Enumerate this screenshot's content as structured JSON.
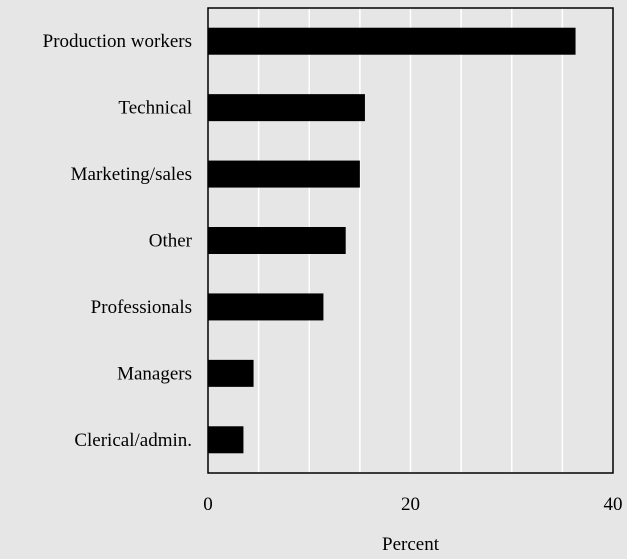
{
  "chart_data": {
    "type": "bar",
    "orientation": "horizontal",
    "categories": [
      "Production workers",
      "Technical",
      "Marketing/sales",
      "Other",
      "Professionals",
      "Managers",
      "Clerical/admin."
    ],
    "values": [
      36.3,
      15.5,
      15.0,
      13.6,
      11.4,
      4.5,
      3.5
    ],
    "xlabel": "Percent",
    "ylabel": "",
    "title": "",
    "xlim": [
      0,
      40
    ],
    "xticks": [
      "0",
      "20",
      "40"
    ],
    "grid": "vertical",
    "bar_color": "#000000",
    "background_color": "#e6e6e6",
    "grid_color": "#ffffff",
    "legend": "none"
  }
}
